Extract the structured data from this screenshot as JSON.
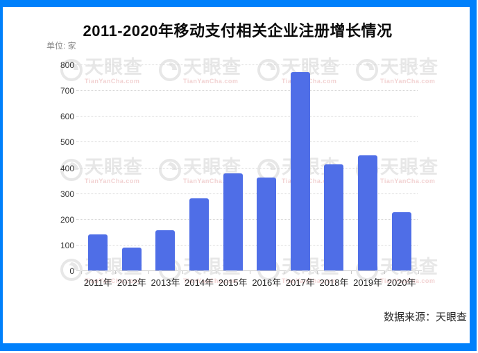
{
  "frame": {
    "border_color": "#0080FB",
    "background": "#ffffff"
  },
  "title": "2011-2020年移动支付相关企业注册增长情况",
  "unit_label": "单位: 家",
  "source_label": "数据来源：天眼查",
  "watermark": {
    "logo": "tianyancha-logo",
    "text": "天眼查",
    "subtext": "TianYanCha.com"
  },
  "chart_data": {
    "type": "bar",
    "title": "2011-2020年移动支付相关企业注册增长情况",
    "unit": "单位: 家",
    "categories": [
      "2011年",
      "2012年",
      "2013年",
      "2014年",
      "2015年",
      "2016年",
      "2017年",
      "2018年",
      "2019年",
      "2020年"
    ],
    "values": [
      140,
      88,
      155,
      281,
      378,
      360,
      770,
      411,
      448,
      225
    ],
    "ylabel_ticks": [
      0,
      100,
      200,
      300,
      400,
      500,
      600,
      700,
      800
    ],
    "ylim": [
      0,
      800
    ],
    "grid": "horizontal-dotted",
    "legend": "none",
    "bar_color": "#4F6EE7",
    "source": "数据来源：天眼查"
  }
}
